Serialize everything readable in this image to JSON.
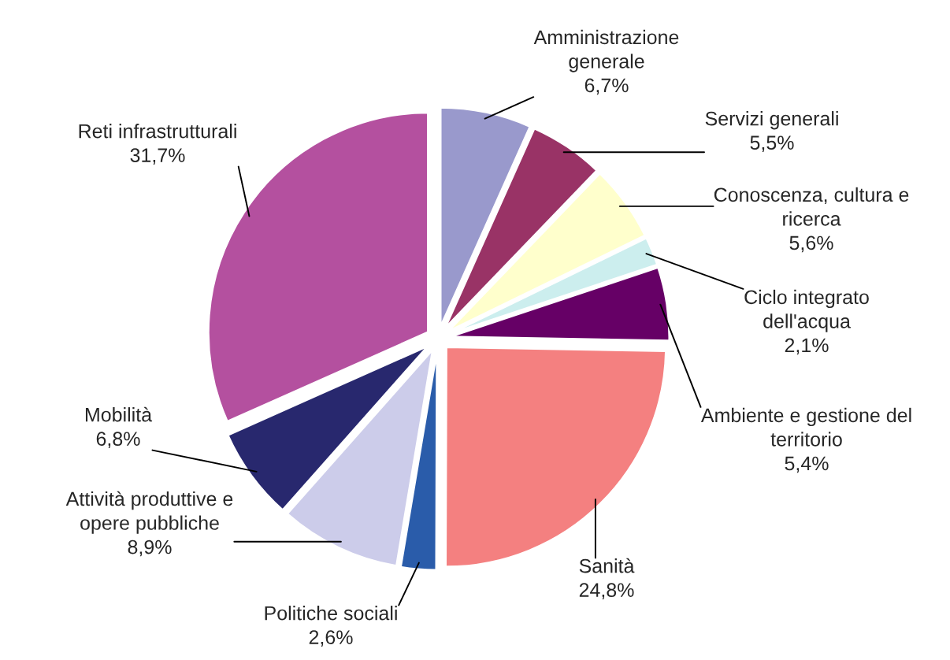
{
  "chart_data": {
    "type": "pie",
    "categories": [
      "Amministrazione\ngenerale",
      "Servizi generali",
      "Conoscenza, cultura e\nricerca",
      "Ciclo integrato\ndell'acqua",
      "Ambiente e gestione del\nterritorio",
      "Sanità",
      "Politiche sociali",
      "Attività produttive e\nopere pubbliche",
      "Mobilità",
      "Reti infrastrutturali"
    ],
    "values": [
      6.7,
      5.5,
      5.6,
      2.1,
      5.4,
      24.8,
      2.6,
      8.9,
      6.8,
      31.7
    ],
    "value_labels": [
      "6,7%",
      "5,5%",
      "5,6%",
      "2,1%",
      "5,4%",
      "24,8%",
      "2,6%",
      "8,9%",
      "6,8%",
      "31,7%"
    ],
    "colors": [
      "#9999cc",
      "#993366",
      "#ffffcc",
      "#cceeee",
      "#660066",
      "#f48080",
      "#2a5caa",
      "#ccccea",
      "#28286e",
      "#b4509f"
    ],
    "legend": false
  }
}
